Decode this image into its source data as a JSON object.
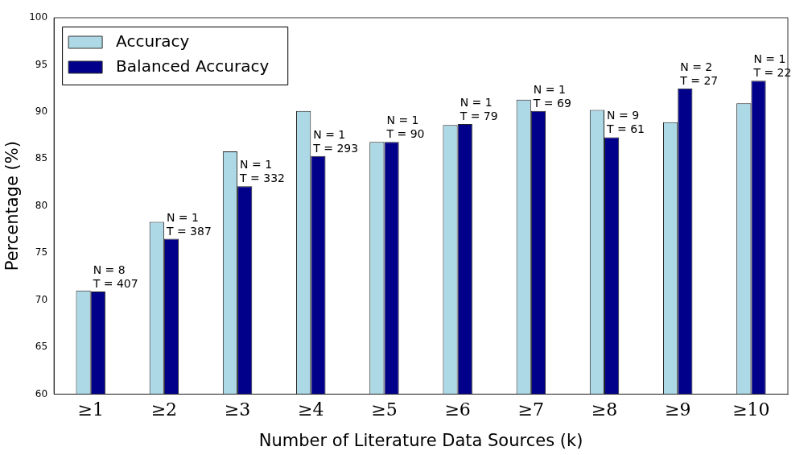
{
  "chart_data": {
    "type": "bar",
    "xlabel": "Number of Literature Data Sources (k)",
    "ylabel": "Percentage (%)",
    "categories": [
      "≥1",
      "≥2",
      "≥3",
      "≥4",
      "≥5",
      "≥6",
      "≥7",
      "≥8",
      "≥9",
      "≥10"
    ],
    "series": [
      {
        "name": "Accuracy",
        "color": "#add8e6",
        "values": [
          71.0,
          78.3,
          85.8,
          90.1,
          86.8,
          88.6,
          91.3,
          90.2,
          88.9,
          90.9
        ]
      },
      {
        "name": "Balanced Accuracy",
        "color": "#00008b",
        "values": [
          70.9,
          76.5,
          82.1,
          85.3,
          86.8,
          88.7,
          90.1,
          87.3,
          92.5,
          93.3
        ]
      }
    ],
    "ylim": [
      60,
      100
    ],
    "yticks": [
      60,
      65,
      70,
      75,
      80,
      85,
      90,
      95,
      100
    ],
    "grid": false,
    "legend": "top left",
    "annotations": [
      {
        "text": "N = 8\nT = 407",
        "x": "≥1",
        "y": 70.9
      },
      {
        "text": "N = 1\nT = 387",
        "x": "≥2",
        "y": 76.5
      },
      {
        "text": "N = 1\nT = 332",
        "x": "≥3",
        "y": 82.1
      },
      {
        "text": "N = 1\nT = 293",
        "x": "≥4",
        "y": 85.3
      },
      {
        "text": "N = 1\nT = 90",
        "x": "≥5",
        "y": 86.8
      },
      {
        "text": "N = 1\nT = 79",
        "x": "≥6",
        "y": 88.7
      },
      {
        "text": "N = 1\nT = 69",
        "x": "≥7",
        "y": 90.1
      },
      {
        "text": "N = 9\nT = 61",
        "x": "≥8",
        "y": 87.3
      },
      {
        "text": "N = 2\nT = 27",
        "x": "≥9",
        "y": 92.5
      },
      {
        "text": "N = 1\nT = 22",
        "x": "≥10",
        "y": 93.3
      }
    ]
  }
}
